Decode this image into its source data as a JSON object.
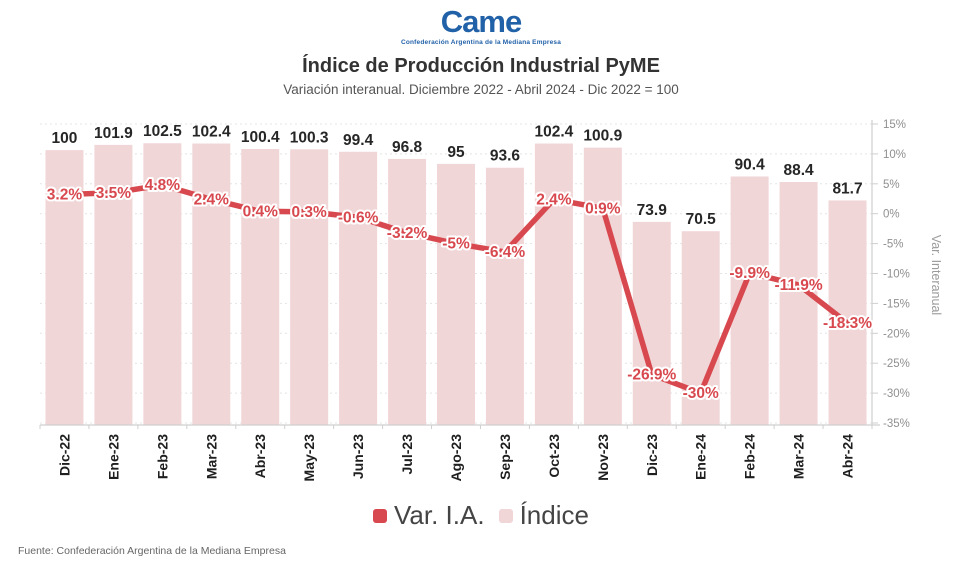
{
  "header": {
    "logo_text": "Came",
    "logo_subtext": "Confederación Argentina de la Mediana Empresa",
    "title": "Índice de Producción Industrial PyME",
    "subtitle": "Variación interanual. Diciembre 2022 - Abril 2024 - Dic 2022 = 100"
  },
  "chart_data": {
    "type": "bar+line combo",
    "categories": [
      "Dic-22",
      "Ene-23",
      "Feb-23",
      "Mar-23",
      "Abr-23",
      "May-23",
      "Jun-23",
      "Jul-23",
      "Ago-23",
      "Sep-23",
      "Oct-23",
      "Nov-23",
      "Dic-23",
      "Ene-24",
      "Feb-24",
      "Mar-24",
      "Abr-24"
    ],
    "series": [
      {
        "name": "Índice",
        "type": "bar",
        "values": [
          100,
          101.9,
          102.5,
          102.4,
          100.4,
          100.3,
          99.4,
          96.8,
          95,
          93.6,
          102.4,
          100.9,
          73.9,
          70.5,
          90.4,
          88.4,
          81.7
        ],
        "labels": [
          "100",
          "101.9",
          "102.5",
          "102.4",
          "100.4",
          "100.3",
          "99.4",
          "96.8",
          "95",
          "93.6",
          "102.4",
          "100.9",
          "73.9",
          "70.5",
          "90.4",
          "88.4",
          "81.7"
        ],
        "color": "#f1d6d8",
        "axis": "left-hidden",
        "ylim": [
          0,
          109.5
        ]
      },
      {
        "name": "Var. I.A.",
        "type": "line",
        "values": [
          3.2,
          3.5,
          4.8,
          2.4,
          0.4,
          0.3,
          -0.6,
          -3.2,
          -5,
          -6.4,
          2.4,
          0.9,
          -26.9,
          -30,
          -9.9,
          -11.9,
          -18.3
        ],
        "labels": [
          "3.2%",
          "3.5%",
          "4.8%",
          "2.4%",
          "0.4%",
          "0.3%",
          "-0.6%",
          "-3.2%",
          "-5%",
          "-6.4%",
          "2.4%",
          "0.9%",
          "-26.9%",
          "-30%",
          "-9.9%",
          "-11.9%",
          "-18.3%"
        ],
        "color": "#d8494f",
        "axis": "right",
        "ylim": [
          -35,
          15
        ]
      }
    ],
    "right_axis": {
      "label": "Var. Interanual",
      "tick_values": [
        15,
        10,
        5,
        0,
        -5,
        -10,
        -15,
        -20,
        -25,
        -30,
        -35
      ],
      "tick_labels": [
        "15%",
        "10%",
        "5%",
        "0%",
        "-5%",
        "-10%",
        "-15%",
        "-20%",
        "-25%",
        "-30%",
        "-35%"
      ]
    },
    "grid": "horizontal dashed every 5%",
    "colors": {
      "bar_fill": "#f1d6d8",
      "line": "#d8494f",
      "bar_value_label": "#262626",
      "axis_line": "#cfcfcf",
      "grid_line": "#e4e4e4",
      "tick_label": "#8f8f8f",
      "x_label": "#1f1f1f",
      "axis_title": "#9a9a9a"
    }
  },
  "legend": {
    "items": [
      {
        "label": "Var. I.A.",
        "color": "#d8494f"
      },
      {
        "label": "Índice",
        "color": "#f1d6d8"
      }
    ]
  },
  "footer": {
    "source": "Fuente: Confederación Argentina de la Mediana Empresa"
  }
}
